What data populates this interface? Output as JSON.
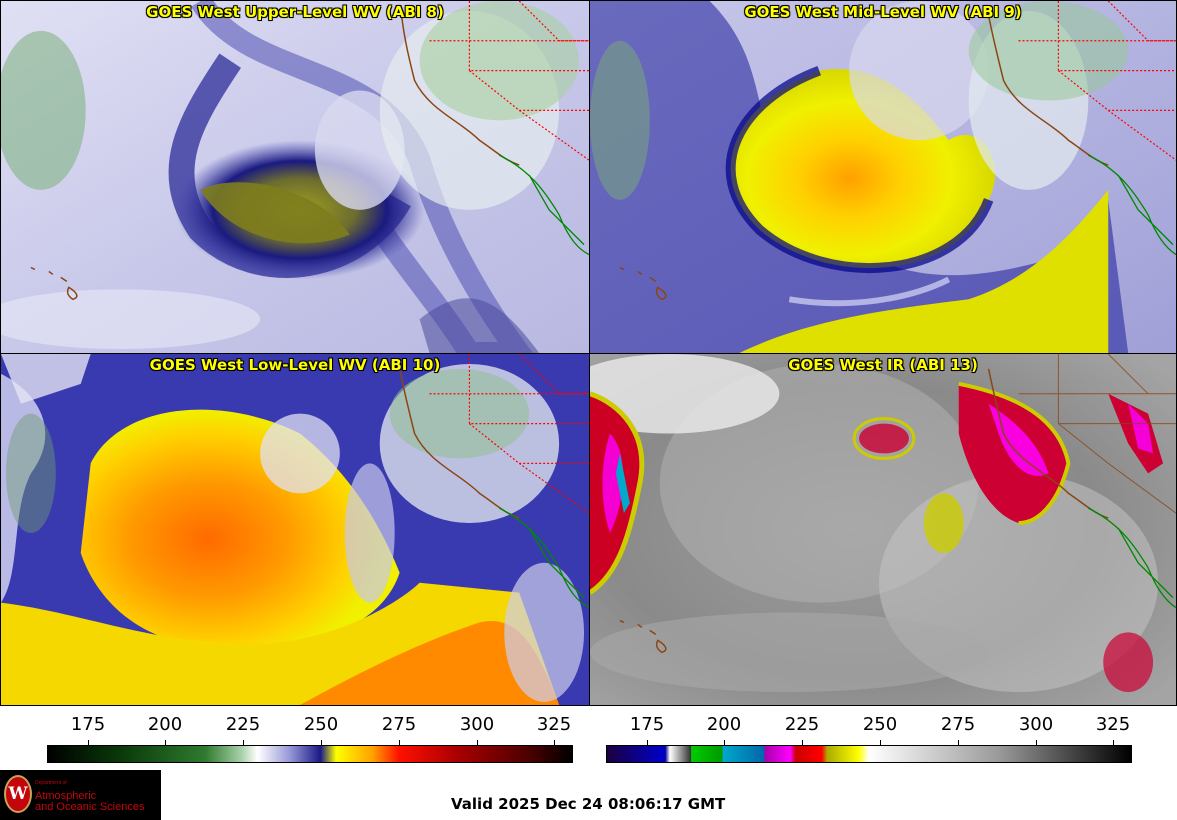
{
  "panels": [
    {
      "title": "GOES West Upper-Level WV (ABI 8)"
    },
    {
      "title": "GOES West Mid-Level WV (ABI 9)"
    },
    {
      "title": "GOES West Low-Level WV (ABI 10)"
    },
    {
      "title": "GOES West IR (ABI 13)"
    }
  ],
  "scales": {
    "wv_ticks": [
      "175",
      "200",
      "225",
      "250",
      "275",
      "300",
      "325"
    ],
    "ir_ticks": [
      "175",
      "200",
      "225",
      "250",
      "275",
      "300",
      "325"
    ]
  },
  "logo": {
    "dept": "Department of",
    "name": "Atmospheric\nand Oceanic Sciences",
    "seal_letter": "W"
  },
  "valid_time": "Valid 2025 Dec 24 08:06:17 GMT",
  "colors": {
    "title_text": "#ffff00",
    "borders_state": "#ff0000",
    "coastline": "#8b4513",
    "mexico_border": "#008800"
  }
}
